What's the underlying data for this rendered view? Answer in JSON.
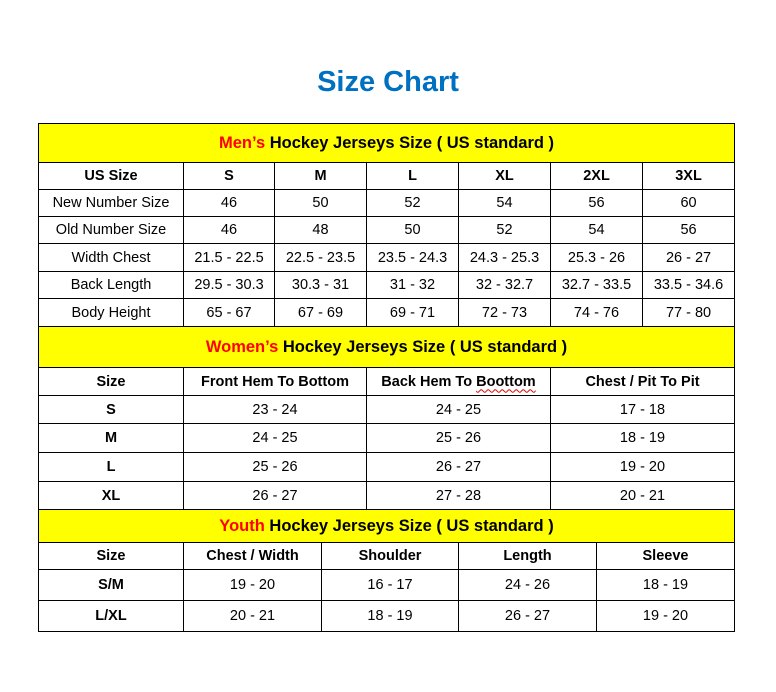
{
  "title": "Size Chart",
  "colors": {
    "title": "#0070C0",
    "section_header_bg": "#FFFF00",
    "section_prefix": "#FF0000"
  },
  "sections": [
    {
      "prefix": "Men’s",
      "heading": " Hockey Jerseys Size ( US standard )",
      "columns": [
        "US Size",
        "S",
        "M",
        "L",
        "XL",
        "2XL",
        "3XL"
      ],
      "rows": [
        [
          "New Number Size",
          "46",
          "50",
          "52",
          "54",
          "56",
          "60"
        ],
        [
          "Old Number Size",
          "46",
          "48",
          "50",
          "52",
          "54",
          "56"
        ],
        [
          "Width Chest",
          "21.5 - 22.5",
          "22.5 - 23.5",
          "23.5 - 24.3",
          "24.3 - 25.3",
          "25.3 - 26",
          "26 - 27"
        ],
        [
          "Back Length",
          "29.5 - 30.3",
          "30.3 - 31",
          "31 - 32",
          "32 - 32.7",
          "32.7 - 33.5",
          "33.5 - 34.6"
        ],
        [
          "Body Height",
          "65 - 67",
          "67 - 69",
          "69 - 71",
          "72 - 73",
          "74 - 76",
          "77 - 80"
        ]
      ]
    },
    {
      "prefix": "Women’s",
      "heading": " Hockey Jerseys Size ( US standard )",
      "columns": [
        "Size",
        "Front Hem To Bottom",
        "Back Hem To Boottom",
        "Chest / Pit To Pit"
      ],
      "rows": [
        [
          "S",
          "23 - 24",
          "24 - 25",
          "17 - 18"
        ],
        [
          "M",
          "24 - 25",
          "25 - 26",
          "18 - 19"
        ],
        [
          "L",
          "25 - 26",
          "26 - 27",
          "19 - 20"
        ],
        [
          "XL",
          "26 - 27",
          "27 - 28",
          "20 - 21"
        ]
      ]
    },
    {
      "prefix": "Youth",
      "heading": " Hockey Jerseys Size ( US standard )",
      "columns": [
        "Size",
        "Chest / Width",
        "Shoulder",
        "Length",
        "Sleeve"
      ],
      "rows": [
        [
          "S/M",
          "19 - 20",
          "16 - 17",
          "24 - 26",
          "18 - 19"
        ],
        [
          "L/XL",
          "20 - 21",
          "18 - 19",
          "26 - 27",
          "19 - 20"
        ]
      ]
    }
  ]
}
